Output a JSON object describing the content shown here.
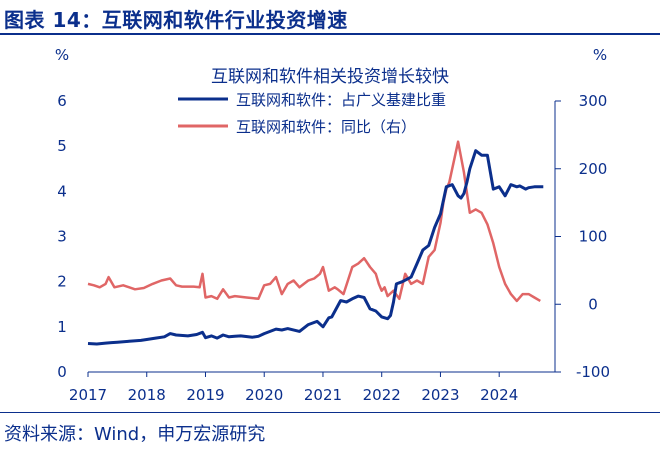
{
  "figure_title": "图表 14：互联网和软件行业投资增速",
  "source": "资料来源：Wind，申万宏源研究",
  "colors": {
    "primary": "#0b2f8c",
    "secondary": "#e06666",
    "axis": "#0b2f8c"
  },
  "chart_data": {
    "type": "line",
    "title": "互联网和软件相关投资增长较快",
    "left_axis": {
      "unit": "%",
      "ylim": [
        0,
        6
      ],
      "ticks": [
        "0",
        "1",
        "2",
        "3",
        "4",
        "5",
        "6"
      ]
    },
    "right_axis": {
      "unit": "%",
      "ylim": [
        -100,
        300
      ],
      "ticks": [
        "-100",
        "0",
        "100",
        "200",
        "300"
      ]
    },
    "x_ticks": [
      "2017",
      "2018",
      "2019",
      "2020",
      "2021",
      "2022",
      "2023",
      "2024"
    ],
    "xlim": [
      2017,
      2024.95
    ],
    "series": [
      {
        "name": "互联网和软件：占广义基建比重",
        "axis": "left",
        "x": [
          2017.0,
          2017.15,
          2017.3,
          2017.4,
          2017.5,
          2017.7,
          2017.9,
          2018.0,
          2018.15,
          2018.3,
          2018.4,
          2018.5,
          2018.7,
          2018.85,
          2018.95,
          2019.0,
          2019.1,
          2019.2,
          2019.3,
          2019.4,
          2019.5,
          2019.6,
          2019.8,
          2019.9,
          2020.0,
          2020.1,
          2020.2,
          2020.3,
          2020.4,
          2020.6,
          2020.75,
          2020.9,
          2021.0,
          2021.1,
          2021.15,
          2021.3,
          2021.4,
          2021.5,
          2021.6,
          2021.7,
          2021.8,
          2021.9,
          2022.0,
          2022.1,
          2022.15,
          2022.2,
          2022.25,
          2022.35,
          2022.5,
          2022.6,
          2022.7,
          2022.8,
          2022.9,
          2023.0,
          2023.1,
          2023.2,
          2023.3,
          2023.35,
          2023.4,
          2023.45,
          2023.5,
          2023.6,
          2023.7,
          2023.8,
          2023.9,
          2024.0,
          2024.1,
          2024.2,
          2024.3,
          2024.35,
          2024.45,
          2024.5,
          2024.6,
          2024.7,
          2024.75
        ],
        "values": [
          0.63,
          0.62,
          0.64,
          0.65,
          0.66,
          0.68,
          0.7,
          0.72,
          0.75,
          0.78,
          0.85,
          0.82,
          0.8,
          0.83,
          0.88,
          0.76,
          0.8,
          0.75,
          0.82,
          0.78,
          0.79,
          0.8,
          0.77,
          0.79,
          0.85,
          0.9,
          0.95,
          0.93,
          0.96,
          0.9,
          1.05,
          1.12,
          1.0,
          1.2,
          1.22,
          1.58,
          1.55,
          1.62,
          1.68,
          1.65,
          1.4,
          1.35,
          1.22,
          1.18,
          1.25,
          1.55,
          1.95,
          2.0,
          2.1,
          2.4,
          2.7,
          2.8,
          3.2,
          3.5,
          4.1,
          4.15,
          3.9,
          3.85,
          3.95,
          4.2,
          4.5,
          4.9,
          4.8,
          4.8,
          4.05,
          4.1,
          3.9,
          4.15,
          4.1,
          4.12,
          4.05,
          4.08,
          4.1,
          4.1,
          4.1
        ]
      },
      {
        "name": "互联网和软件：同比（右）",
        "axis": "right",
        "x": [
          2017.0,
          2017.1,
          2017.2,
          2017.3,
          2017.35,
          2017.45,
          2017.6,
          2017.8,
          2017.95,
          2018.1,
          2018.25,
          2018.4,
          2018.5,
          2018.6,
          2018.8,
          2018.9,
          2018.95,
          2019.0,
          2019.1,
          2019.2,
          2019.3,
          2019.4,
          2019.5,
          2019.7,
          2019.9,
          2020.0,
          2020.1,
          2020.2,
          2020.3,
          2020.4,
          2020.5,
          2020.6,
          2020.75,
          2020.85,
          2020.95,
          2021.0,
          2021.1,
          2021.2,
          2021.25,
          2021.35,
          2021.5,
          2021.6,
          2021.7,
          2021.8,
          2021.9,
          2021.95,
          2022.0,
          2022.05,
          2022.1,
          2022.2,
          2022.3,
          2022.4,
          2022.5,
          2022.6,
          2022.7,
          2022.8,
          2022.9,
          2023.0,
          2023.05,
          2023.1,
          2023.15,
          2023.2,
          2023.3,
          2023.4,
          2023.5,
          2023.6,
          2023.7,
          2023.8,
          2023.9,
          2024.0,
          2024.1,
          2024.2,
          2024.3,
          2024.4,
          2024.5,
          2024.6,
          2024.7
        ],
        "values": [
          30,
          28,
          25,
          30,
          40,
          25,
          28,
          22,
          24,
          30,
          35,
          38,
          28,
          26,
          26,
          25,
          45,
          10,
          12,
          8,
          22,
          10,
          12,
          10,
          8,
          28,
          30,
          40,
          15,
          30,
          35,
          25,
          35,
          38,
          45,
          55,
          20,
          25,
          22,
          15,
          55,
          60,
          68,
          55,
          45,
          30,
          20,
          25,
          12,
          20,
          8,
          45,
          30,
          35,
          30,
          70,
          80,
          120,
          150,
          170,
          180,
          200,
          240,
          195,
          135,
          140,
          135,
          118,
          90,
          55,
          30,
          15,
          5,
          15,
          15,
          10,
          5
        ]
      }
    ],
    "legend": "top-center"
  }
}
